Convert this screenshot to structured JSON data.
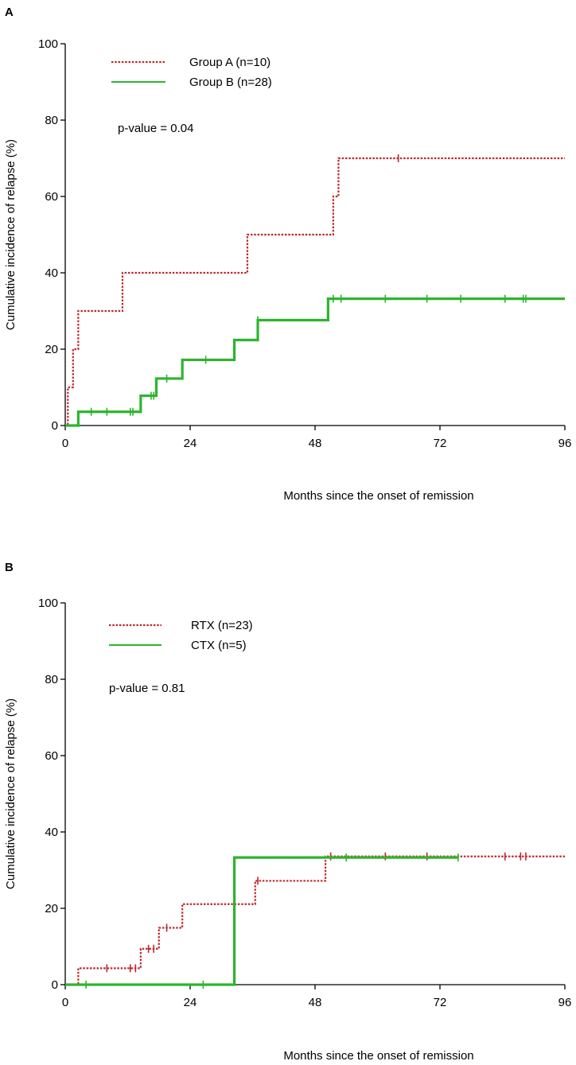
{
  "chart_data": [
    {
      "panel": "A",
      "type": "line",
      "subtype": "step (Kaplan-Meier cumulative incidence)",
      "title": "",
      "xlabel": "Months since the onset of remission",
      "ylabel": "Cumulative incidence of relapse (%)",
      "xlim": [
        0,
        96
      ],
      "ylim": [
        0,
        100
      ],
      "xticks": [
        0,
        24,
        48,
        72,
        96
      ],
      "yticks": [
        0,
        20,
        40,
        60,
        80,
        100
      ],
      "annotation": "p-value = 0.04",
      "legend_position": "top-left",
      "series": [
        {
          "name": "Group A (n=10)",
          "color": "#c0282d",
          "style": "dotted",
          "steps": [
            [
              0,
              0
            ],
            [
              0.5,
              10
            ],
            [
              1.5,
              20
            ],
            [
              2.5,
              30
            ],
            [
              11,
              40
            ],
            [
              35,
              50
            ],
            [
              51.5,
              60
            ],
            [
              52.5,
              70
            ],
            [
              96,
              70
            ]
          ],
          "censored": [
            [
              64,
              70
            ]
          ]
        },
        {
          "name": "Group B (n=28)",
          "color": "#2db52d",
          "style": "solid",
          "steps": [
            [
              0,
              0
            ],
            [
              2.5,
              3.6
            ],
            [
              14.5,
              7.8
            ],
            [
              17.5,
              12.3
            ],
            [
              22.5,
              17.2
            ],
            [
              32.5,
              22.4
            ],
            [
              37,
              27.6
            ],
            [
              50.5,
              33.2
            ],
            [
              96,
              33.2
            ]
          ],
          "censored": [
            [
              5,
              3.6
            ],
            [
              8,
              3.6
            ],
            [
              12.5,
              3.6
            ],
            [
              13,
              3.6
            ],
            [
              16.5,
              7.8
            ],
            [
              17,
              7.8
            ],
            [
              19.5,
              12.3
            ],
            [
              27,
              17.2
            ],
            [
              37,
              27.6
            ],
            [
              51.5,
              33.2
            ],
            [
              53,
              33.2
            ],
            [
              61.5,
              33.2
            ],
            [
              69.5,
              33.2
            ],
            [
              76,
              33.2
            ],
            [
              84.5,
              33.2
            ],
            [
              88,
              33.2
            ],
            [
              88.5,
              33.2
            ]
          ]
        }
      ]
    },
    {
      "panel": "B",
      "type": "line",
      "subtype": "step (Kaplan-Meier cumulative incidence)",
      "title": "",
      "xlabel": "Months since the onset of remission",
      "ylabel": "Cumulative incidence of relapse (%)",
      "xlim": [
        0,
        96
      ],
      "ylim": [
        0,
        100
      ],
      "xticks": [
        0,
        24,
        48,
        72,
        96
      ],
      "yticks": [
        0,
        20,
        40,
        60,
        80,
        100
      ],
      "annotation": "p-value = 0.81",
      "legend_position": "top-left",
      "series": [
        {
          "name": "RTX (n=23)",
          "color": "#c0282d",
          "style": "dotted",
          "steps": [
            [
              0,
              0
            ],
            [
              2.5,
              4.3
            ],
            [
              14.5,
              9.4
            ],
            [
              18,
              14.9
            ],
            [
              22.5,
              21.1
            ],
            [
              36.5,
              27.2
            ],
            [
              50,
              33.6
            ],
            [
              96,
              33.6
            ]
          ],
          "censored": [
            [
              8,
              4.3
            ],
            [
              12.5,
              4.3
            ],
            [
              13.5,
              4.3
            ],
            [
              16,
              9.4
            ],
            [
              17,
              9.4
            ],
            [
              19.5,
              14.9
            ],
            [
              37,
              27.2
            ],
            [
              51,
              33.6
            ],
            [
              61.5,
              33.6
            ],
            [
              69.5,
              33.6
            ],
            [
              84.5,
              33.6
            ],
            [
              87.5,
              33.6
            ],
            [
              88.5,
              33.6
            ]
          ]
        },
        {
          "name": "CTX (n=5)",
          "color": "#2db52d",
          "style": "solid",
          "steps": [
            [
              0,
              0
            ],
            [
              32.5,
              33.3
            ],
            [
              75.5,
              33.3
            ]
          ],
          "censored": [
            [
              4,
              0
            ],
            [
              26.5,
              0
            ],
            [
              54,
              33.3
            ],
            [
              75.5,
              33.3
            ]
          ]
        }
      ]
    }
  ]
}
